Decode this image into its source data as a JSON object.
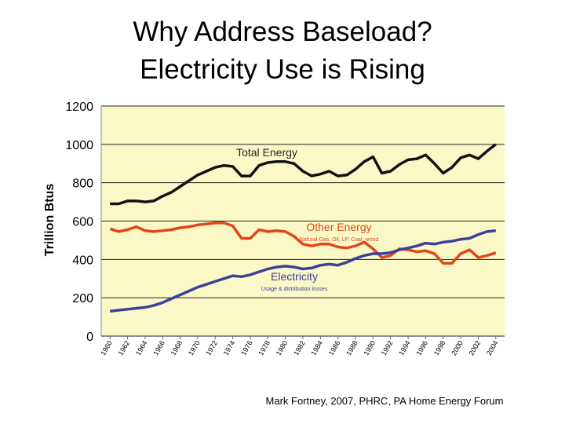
{
  "chart_data": {
    "type": "line",
    "title": "Why Address Baseload?",
    "subtitle": "Electricity Use is Rising",
    "y_label": "Trillion Btus",
    "footer": "Mark Fortney, 2007, PHRC, PA Home Energy Forum",
    "x": [
      1960,
      1961,
      1962,
      1963,
      1964,
      1965,
      1966,
      1967,
      1968,
      1969,
      1970,
      1971,
      1972,
      1973,
      1974,
      1975,
      1976,
      1977,
      1978,
      1979,
      1980,
      1981,
      1982,
      1983,
      1984,
      1985,
      1986,
      1987,
      1988,
      1989,
      1990,
      1991,
      1992,
      1993,
      1994,
      1995,
      1996,
      1997,
      1998,
      1999,
      2000,
      2001,
      2002,
      2003,
      2004
    ],
    "series": [
      {
        "name": "Total Energy",
        "color": "#111111",
        "values": [
          690,
          690,
          705,
          705,
          700,
          705,
          730,
          750,
          780,
          810,
          840,
          860,
          880,
          890,
          885,
          835,
          835,
          890,
          905,
          910,
          910,
          900,
          860,
          835,
          845,
          860,
          835,
          840,
          870,
          910,
          935,
          850,
          860,
          895,
          920,
          925,
          945,
          900,
          850,
          880,
          930,
          945,
          925,
          965,
          1000
        ]
      },
      {
        "name": "Other Energy",
        "note": "Natural Gas, Oil, LP, Coal, wood",
        "color": "#e2461a",
        "values": [
          560,
          545,
          555,
          570,
          550,
          545,
          550,
          555,
          565,
          570,
          580,
          585,
          590,
          590,
          575,
          510,
          510,
          555,
          545,
          550,
          545,
          520,
          480,
          470,
          480,
          480,
          465,
          460,
          470,
          490,
          455,
          410,
          420,
          455,
          450,
          440,
          445,
          430,
          380,
          380,
          430,
          450,
          410,
          420,
          435
        ]
      },
      {
        "name": "Electricity",
        "note": "Usage & distribution losses",
        "color": "#3b4196",
        "values": [
          130,
          135,
          140,
          145,
          150,
          160,
          175,
          195,
          215,
          235,
          255,
          270,
          285,
          300,
          315,
          310,
          320,
          335,
          350,
          360,
          365,
          360,
          350,
          355,
          370,
          375,
          370,
          385,
          405,
          420,
          430,
          430,
          435,
          450,
          460,
          470,
          485,
          480,
          490,
          495,
          505,
          510,
          530,
          545,
          550
        ]
      }
    ],
    "xlim": [
      1959,
      2005
    ],
    "xticks": [
      1960,
      1962,
      1964,
      1966,
      1968,
      1970,
      1972,
      1974,
      1976,
      1978,
      1980,
      1982,
      1984,
      1986,
      1988,
      1990,
      1992,
      1994,
      1996,
      1998,
      2000,
      2002,
      2004
    ],
    "ylim": [
      0,
      1200
    ],
    "yticks": [
      0,
      200,
      400,
      600,
      800,
      1000,
      1200
    ],
    "grid": true,
    "background": "#fbf8c8"
  }
}
